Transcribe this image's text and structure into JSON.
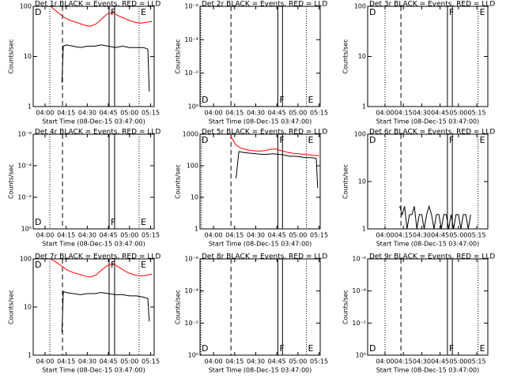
{
  "chart_data": [
    {
      "type": "line",
      "title": "Det 1r BLACK = Events, RED = LLD",
      "ylabel": "Counts/sec",
      "xlabel": "Start Time (08-Dec-15 03:47:00)",
      "log_y": true,
      "xlim": [
        231.6,
        317.5
      ],
      "xticks": [
        {
          "value": 240,
          "label": "04:00"
        },
        {
          "value": 255,
          "label": "04:15"
        },
        {
          "value": 270,
          "label": "04:30"
        },
        {
          "value": 285,
          "label": "04:45"
        },
        {
          "value": 300,
          "label": "05:00"
        },
        {
          "value": 315,
          "label": "05:15"
        }
      ],
      "ylim": [
        1,
        100
      ],
      "yticks": [
        1,
        10,
        100
      ],
      "lines": [
        {
          "style": "dotted",
          "x": 243.4
        },
        {
          "style": "dashed",
          "x": 252.4
        },
        {
          "style": "solid",
          "x": 285.5
        },
        {
          "style": "solid",
          "x": 289.4
        },
        {
          "style": "dotted",
          "x": 306.8
        }
      ],
      "labels": [
        "D",
        "F",
        "E"
      ],
      "label_side": "top",
      "series": [
        {
          "color": "#ff0000",
          "x": [
            244,
            248,
            252,
            256,
            260,
            264,
            268,
            272,
            276,
            280,
            284,
            288,
            292,
            296,
            300,
            304,
            308,
            312,
            316
          ],
          "values": [
            100,
            80,
            65,
            55,
            50,
            46,
            42,
            40,
            44,
            55,
            70,
            75,
            65,
            58,
            52,
            48,
            46,
            48,
            50
          ]
        },
        {
          "color": "#000000",
          "x": [
            252,
            253,
            255,
            260,
            265,
            270,
            275,
            280,
            285,
            290,
            295,
            300,
            305,
            310,
            313,
            314
          ],
          "values": [
            3,
            16,
            17,
            16,
            15,
            16,
            16,
            17,
            16,
            15,
            16,
            15,
            15,
            15,
            14,
            2
          ]
        }
      ]
    },
    {
      "type": "line",
      "title": "Det 2r BLACK = Events, RED = LLD",
      "ylabel": "Counts/sec",
      "xlabel": "Start Time (08-Dec-15 03:47:00)",
      "log_y": true,
      "xlim": [
        230.4,
        315.8
      ],
      "xticks": [
        {
          "value": 240,
          "label": "04:00"
        },
        {
          "value": 255,
          "label": "04:15"
        },
        {
          "value": 270,
          "label": "04:30"
        },
        {
          "value": 285,
          "label": "04:45"
        },
        {
          "value": 300,
          "label": "05:00"
        },
        {
          "value": 315,
          "label": "05:15"
        }
      ],
      "ylim": [
        1,
        1e-06
      ],
      "yticks": [
        {
          "value": 1,
          "label": "10⁰"
        },
        {
          "value": 0.01,
          "label": "10⁻²"
        },
        {
          "value": 0.0001,
          "label": "10⁻⁴"
        },
        {
          "value": 1e-06,
          "label": "10⁻⁶"
        }
      ],
      "lines": [
        {
          "style": "dotted",
          "x": 231
        },
        {
          "style": "dashed",
          "x": 252.4
        },
        {
          "style": "solid",
          "x": 285.7
        },
        {
          "style": "solid",
          "x": 289
        },
        {
          "style": "dotted",
          "x": 306
        }
      ],
      "labels": [
        "D",
        "F",
        "E"
      ],
      "label_side": "bottom",
      "series": []
    },
    {
      "type": "line",
      "title": "Det 3r BLACK = Events, RED = LLD",
      "ylabel": "Counts/sec",
      "xlabel": "Start Time (08-Dec-15 03:47:00)",
      "log_y": true,
      "xlim": [
        225.8,
        324
      ],
      "xticks": [
        {
          "value": 240,
          "label": "04:00"
        },
        {
          "value": 255,
          "label": "04:15"
        },
        {
          "value": 270,
          "label": "04:30"
        },
        {
          "value": 285,
          "label": "04:45"
        },
        {
          "value": 300,
          "label": "05:00"
        },
        {
          "value": 315,
          "label": "05:15"
        }
      ],
      "ylim": [
        1,
        100
      ],
      "yticks": [
        1,
        10,
        100
      ],
      "lines": [
        {
          "style": "dotted",
          "x": 240
        },
        {
          "style": "dashed",
          "x": 253
        },
        {
          "style": "solid",
          "x": 291
        },
        {
          "style": "solid",
          "x": 295
        },
        {
          "style": "dotted",
          "x": 316
        }
      ],
      "labels": [
        "D",
        "F",
        "E"
      ],
      "label_side": "top",
      "series": []
    },
    {
      "type": "line",
      "title": "Det 4r BLACK = Events, RED = LLD",
      "ylabel": "Counts/sec",
      "xlabel": "Start Time (08-Dec-15 03:47:00)",
      "log_y": true,
      "xlim": [
        231.6,
        317.5
      ],
      "xticks": [
        {
          "value": 240,
          "label": "04:00"
        },
        {
          "value": 255,
          "label": "04:15"
        },
        {
          "value": 270,
          "label": "04:30"
        },
        {
          "value": 285,
          "label": "04:45"
        },
        {
          "value": 300,
          "label": "05:00"
        },
        {
          "value": 315,
          "label": "05:15"
        }
      ],
      "ylim": [
        1,
        1e-06
      ],
      "yticks": [
        {
          "value": 1,
          "label": "10⁰"
        },
        {
          "value": 0.01,
          "label": "10⁻²"
        },
        {
          "value": 0.0001,
          "label": "10⁻⁴"
        },
        {
          "value": 1e-06,
          "label": "10⁻⁶"
        }
      ],
      "lines": [
        {
          "style": "dotted",
          "x": 243.4
        },
        {
          "style": "dashed",
          "x": 252.4
        },
        {
          "style": "solid",
          "x": 285.5
        },
        {
          "style": "solid",
          "x": 289.4
        },
        {
          "style": "dotted",
          "x": 306.8
        }
      ],
      "labels": [
        "D",
        "F",
        "E"
      ],
      "label_side": "bottom",
      "series": []
    },
    {
      "type": "line",
      "title": "Det 5r BLACK = Events, RED = LLD",
      "ylabel": "Counts/sec",
      "xlabel": "Start Time (08-Dec-15 03:47:00)",
      "log_y": true,
      "xlim": [
        230.4,
        315.8
      ],
      "xticks": [
        {
          "value": 240,
          "label": "04:00"
        },
        {
          "value": 255,
          "label": "04:15"
        },
        {
          "value": 270,
          "label": "04:30"
        },
        {
          "value": 285,
          "label": "04:45"
        },
        {
          "value": 300,
          "label": "05:00"
        },
        {
          "value": 315,
          "label": "05:15"
        }
      ],
      "ylim": [
        1,
        1000
      ],
      "yticks": [
        1,
        10,
        100,
        1000
      ],
      "lines": [
        {
          "style": "dotted",
          "x": 231.5
        },
        {
          "style": "dashed",
          "x": 252.4
        },
        {
          "style": "solid",
          "x": 285.7
        },
        {
          "style": "solid",
          "x": 289
        },
        {
          "style": "dotted",
          "x": 306
        }
      ],
      "labels": [
        "D",
        "F",
        "E"
      ],
      "label_side": "top",
      "series": [
        {
          "color": "#ff0000",
          "x": [
            252,
            256,
            260,
            264,
            268,
            272,
            276,
            280,
            284,
            288,
            292,
            296,
            300,
            304,
            308,
            312,
            315
          ],
          "values": [
            900,
            450,
            350,
            320,
            300,
            290,
            300,
            330,
            340,
            300,
            270,
            250,
            240,
            230,
            220,
            210,
            210
          ]
        },
        {
          "color": "#000000",
          "x": [
            256,
            258,
            262,
            266,
            270,
            274,
            278,
            282,
            286,
            290,
            294,
            298,
            302,
            306,
            310,
            313,
            314
          ],
          "values": [
            40,
            280,
            260,
            250,
            240,
            230,
            230,
            240,
            230,
            220,
            200,
            200,
            190,
            180,
            180,
            170,
            20
          ]
        }
      ]
    },
    {
      "type": "line",
      "title": "Det 6r BLACK = Events, RED = LLD",
      "ylabel": "Counts/sec",
      "xlabel": "Start Time (08-Dec-15 03:47:00)",
      "log_y": true,
      "xlim": [
        225.8,
        324
      ],
      "xticks": [
        {
          "value": 240,
          "label": "04:00"
        },
        {
          "value": 255,
          "label": "04:15"
        },
        {
          "value": 270,
          "label": "04:30"
        },
        {
          "value": 285,
          "label": "04:45"
        },
        {
          "value": 300,
          "label": "05:00"
        },
        {
          "value": 315,
          "label": "05:15"
        }
      ],
      "ylim": [
        1,
        100
      ],
      "yticks": [
        1,
        10,
        100
      ],
      "lines": [
        {
          "style": "dotted",
          "x": 240
        },
        {
          "style": "dashed",
          "x": 253
        },
        {
          "style": "solid",
          "x": 291
        },
        {
          "style": "solid",
          "x": 295
        },
        {
          "style": "dotted",
          "x": 316
        }
      ],
      "labels": [
        "D",
        "F",
        "E"
      ],
      "label_side": "top",
      "series": [
        {
          "color": "#000000",
          "x": [
            252,
            254,
            256,
            258,
            260,
            262,
            264,
            266,
            268,
            270,
            272,
            274,
            276,
            278,
            280,
            282,
            284,
            286,
            288,
            290,
            292,
            294,
            296,
            298,
            300,
            302,
            304,
            306,
            308,
            310
          ],
          "values": [
            3,
            2,
            3,
            1,
            2,
            2,
            3,
            1,
            2,
            2,
            1,
            2,
            3,
            2,
            1,
            2,
            2,
            1,
            2,
            2,
            1,
            2,
            1,
            2,
            2,
            1,
            2,
            2,
            1,
            2
          ]
        }
      ]
    },
    {
      "type": "line",
      "title": "Det 7r BLACK = Events, RED = LLD",
      "ylabel": "Counts/sec",
      "xlabel": "Start Time (08-Dec-15 03:47:00)",
      "log_y": true,
      "xlim": [
        231.6,
        317.5
      ],
      "xticks": [
        {
          "value": 240,
          "label": "04:00"
        },
        {
          "value": 255,
          "label": "04:15"
        },
        {
          "value": 270,
          "label": "04:30"
        },
        {
          "value": 285,
          "label": "04:45"
        },
        {
          "value": 300,
          "label": "05:00"
        },
        {
          "value": 315,
          "label": "05:15"
        }
      ],
      "ylim": [
        1,
        100
      ],
      "yticks": [
        1,
        10,
        100
      ],
      "lines": [
        {
          "style": "dotted",
          "x": 243.4
        },
        {
          "style": "dashed",
          "x": 252.4
        },
        {
          "style": "solid",
          "x": 285.5
        },
        {
          "style": "solid",
          "x": 289.4
        },
        {
          "style": "dotted",
          "x": 306.8
        }
      ],
      "labels": [
        "D",
        "F",
        "E"
      ],
      "label_side": "top",
      "series": [
        {
          "color": "#ff0000",
          "x": [
            244,
            248,
            252,
            256,
            260,
            264,
            268,
            272,
            276,
            280,
            284,
            288,
            292,
            296,
            300,
            304,
            308,
            312,
            316
          ],
          "values": [
            100,
            85,
            70,
            58,
            52,
            48,
            44,
            42,
            46,
            58,
            72,
            80,
            68,
            58,
            50,
            46,
            44,
            46,
            48
          ]
        },
        {
          "color": "#000000",
          "x": [
            252,
            253,
            255,
            260,
            265,
            270,
            275,
            280,
            285,
            290,
            295,
            300,
            305,
            310,
            313,
            314
          ],
          "values": [
            3,
            21,
            20,
            19,
            18,
            19,
            19,
            20,
            19,
            18,
            18,
            17,
            17,
            16,
            15,
            5
          ]
        }
      ]
    },
    {
      "type": "line",
      "title": "Det 8r BLACK = Events, RED = LLD",
      "ylabel": "Counts/sec",
      "xlabel": "Start Time (08-Dec-15 03:47:00)",
      "log_y": true,
      "xlim": [
        230.4,
        315.8
      ],
      "xticks": [
        {
          "value": 240,
          "label": "04:00"
        },
        {
          "value": 255,
          "label": "04:15"
        },
        {
          "value": 270,
          "label": "04:30"
        },
        {
          "value": 285,
          "label": "04:45"
        },
        {
          "value": 300,
          "label": "05:00"
        },
        {
          "value": 315,
          "label": "05:15"
        }
      ],
      "ylim": [
        1,
        1e-06
      ],
      "yticks": [
        {
          "value": 1,
          "label": "10⁰"
        },
        {
          "value": 0.01,
          "label": "10⁻²"
        },
        {
          "value": 0.0001,
          "label": "10⁻⁴"
        },
        {
          "value": 1e-06,
          "label": "10⁻⁶"
        }
      ],
      "lines": [
        {
          "style": "dotted",
          "x": 231
        },
        {
          "style": "dashed",
          "x": 252.4
        },
        {
          "style": "solid",
          "x": 285.7
        },
        {
          "style": "solid",
          "x": 289
        },
        {
          "style": "dotted",
          "x": 306
        }
      ],
      "labels": [
        "D",
        "F",
        "E"
      ],
      "label_side": "bottom",
      "series": []
    },
    {
      "type": "line",
      "title": "Det 9r BLACK = Events, RED = LLD",
      "ylabel": "Counts/sec",
      "xlabel": "Start Time (08-Dec-15 03:47:00)",
      "log_y": true,
      "xlim": [
        225.8,
        324
      ],
      "xticks": [
        {
          "value": 240,
          "label": "04:00"
        },
        {
          "value": 255,
          "label": "04:15"
        },
        {
          "value": 270,
          "label": "04:30"
        },
        {
          "value": 285,
          "label": "04:45"
        },
        {
          "value": 300,
          "label": "05:00"
        },
        {
          "value": 315,
          "label": "05:15"
        }
      ],
      "ylim": [
        1,
        1e-06
      ],
      "yticks": [
        {
          "value": 1,
          "label": "10⁰"
        },
        {
          "value": 0.01,
          "label": "10⁻²"
        },
        {
          "value": 0.0001,
          "label": "10⁻⁴"
        },
        {
          "value": 1e-06,
          "label": "10⁻⁶"
        }
      ],
      "lines": [
        {
          "style": "dotted",
          "x": 240
        },
        {
          "style": "dashed",
          "x": 253
        },
        {
          "style": "solid",
          "x": 291
        },
        {
          "style": "solid",
          "x": 295
        },
        {
          "style": "dotted",
          "x": 316
        }
      ],
      "labels": [
        "D",
        "F",
        "E"
      ],
      "label_side": "bottom",
      "series": []
    }
  ]
}
